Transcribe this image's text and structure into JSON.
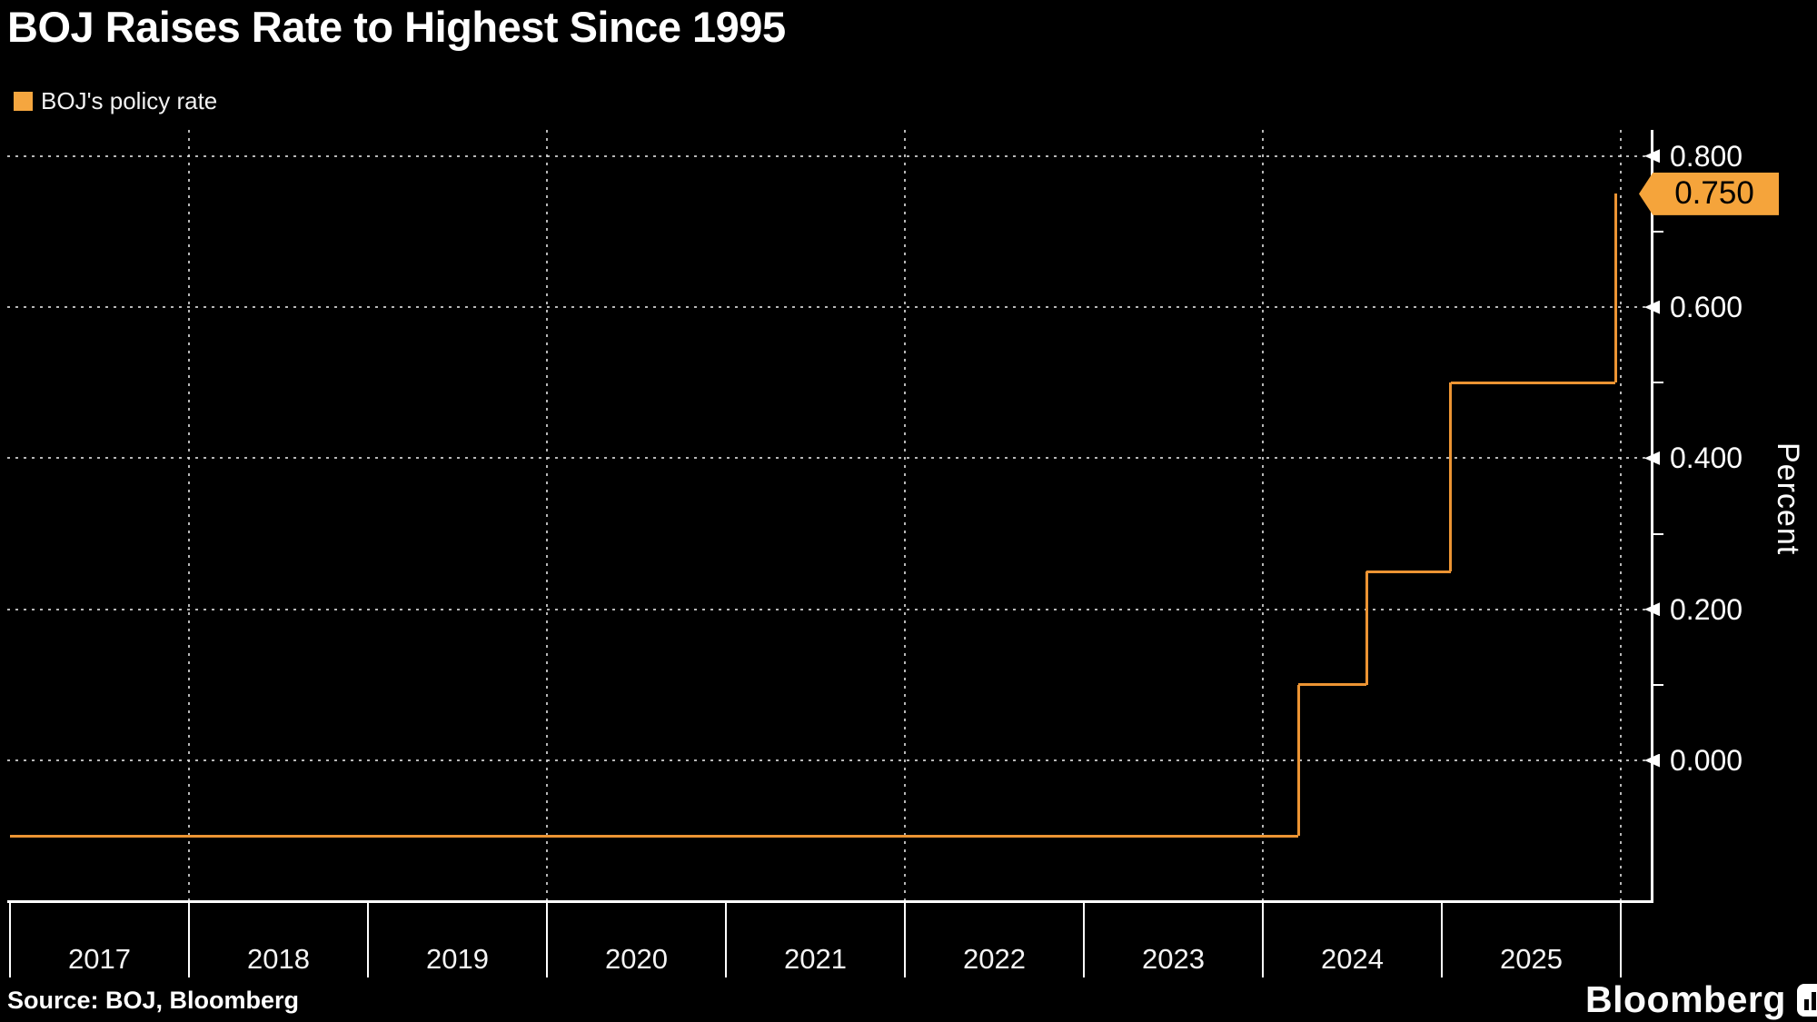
{
  "title": "BOJ Raises Rate to Highest Since 1995",
  "legend": {
    "label": "BOJ's policy rate",
    "swatch_color": "#F5A63F"
  },
  "source": "Source: BOJ, Bloomberg",
  "branding": {
    "wordmark": "Bloomberg",
    "icon": "bar-chart-icon"
  },
  "colors": {
    "background": "#000000",
    "line_orange": "#EC9433",
    "tag_orange": "#F5A43B",
    "axis_white": "#FFFFFF",
    "grid_gray": "#D7D7D7"
  },
  "chart_data": {
    "type": "line",
    "step": "after",
    "title": "BOJ Raises Rate to Highest Since 1995",
    "xlabel": "",
    "ylabel": "Percent",
    "legend_position": "top-left",
    "grid": {
      "horizontal_values": [
        0.8,
        0.6,
        0.4,
        0.2,
        0.0
      ],
      "vertical_years": [
        2018,
        2020,
        2022,
        2024,
        2026
      ]
    },
    "series": [
      {
        "name": "BOJ's policy rate",
        "color": "#EC9433",
        "points": [
          {
            "x": 2017.0,
            "y": -0.1
          },
          {
            "x": 2024.2,
            "y": 0.1
          },
          {
            "x": 2024.58,
            "y": 0.25
          },
          {
            "x": 2025.05,
            "y": 0.5
          },
          {
            "x": 2025.97,
            "y": 0.75
          }
        ]
      }
    ],
    "last_value": {
      "label": "0.750",
      "value": 0.75
    },
    "y_axis": {
      "side": "right",
      "range": [
        -0.186,
        0.835
      ],
      "major_tick_values": [
        0.8,
        0.6,
        0.4,
        0.2,
        0.0
      ],
      "major_tick_labels": [
        "0.800",
        "0.600",
        "0.400",
        "0.200",
        "0.000"
      ],
      "minor_tick_values": [
        0.7,
        0.5,
        0.3,
        0.1
      ]
    },
    "x_axis": {
      "range": [
        2017.0,
        2026.17
      ],
      "boundary_years": [
        2017,
        2018,
        2019,
        2020,
        2021,
        2022,
        2023,
        2024,
        2025,
        2026
      ],
      "year_labels": [
        "2017",
        "2018",
        "2019",
        "2020",
        "2021",
        "2022",
        "2023",
        "2024",
        "2025"
      ]
    }
  }
}
